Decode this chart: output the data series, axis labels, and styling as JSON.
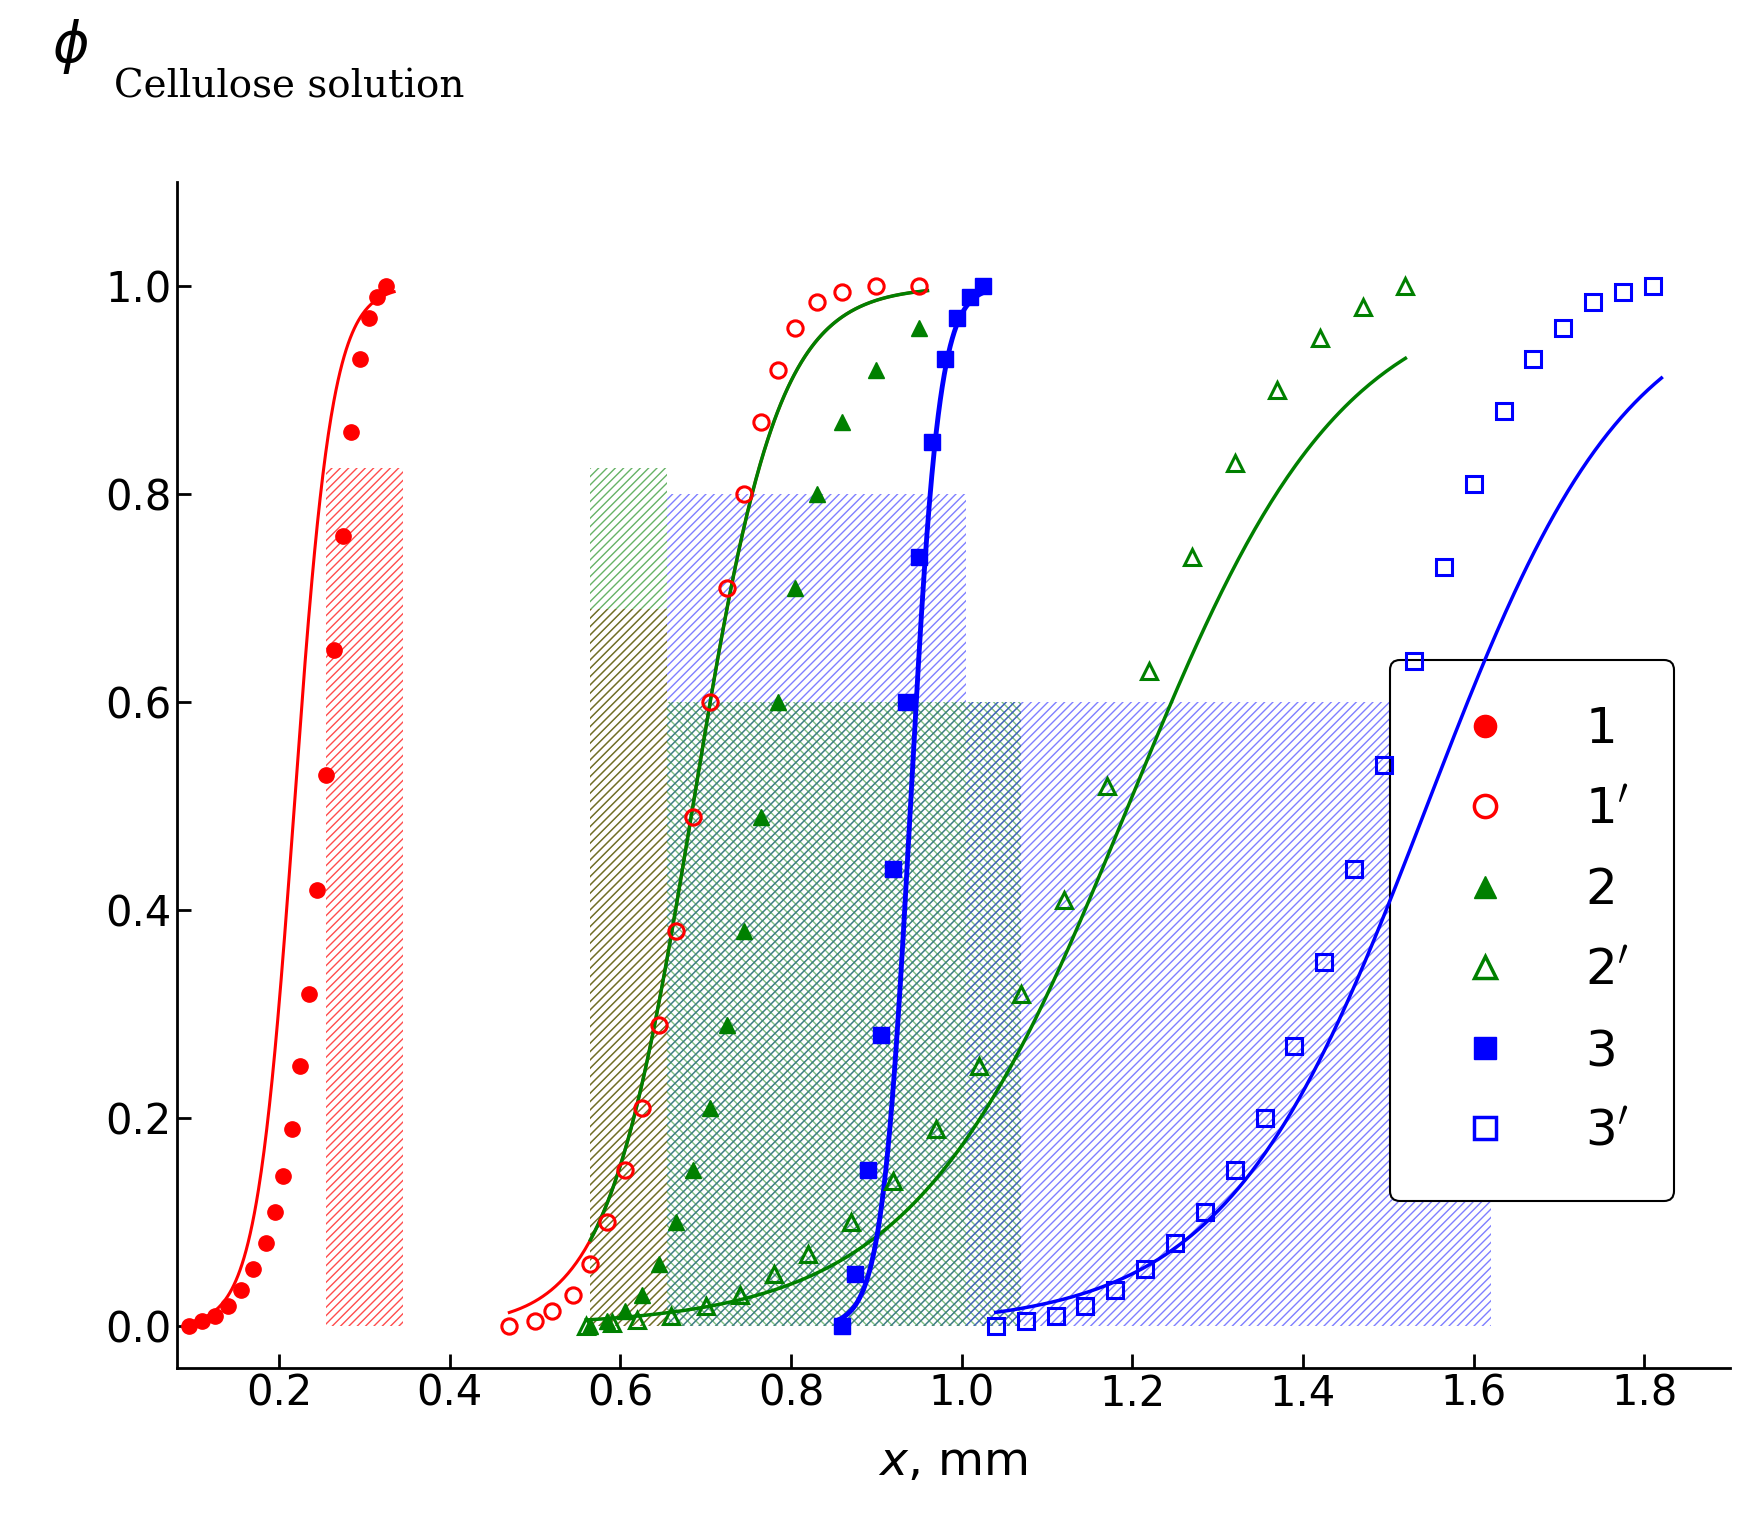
{
  "xlabel": "$x$, mm",
  "xlim": [
    0.08,
    1.9
  ],
  "ylim": [
    -0.04,
    1.1
  ],
  "xticks": [
    0.2,
    0.4,
    0.6,
    0.8,
    1.0,
    1.2,
    1.4,
    1.6,
    1.8
  ],
  "yticks": [
    0.0,
    0.2,
    0.4,
    0.6,
    0.8,
    1.0
  ],
  "series": {
    "s1_solid": {
      "x": [
        0.095,
        0.11,
        0.125,
        0.14,
        0.155,
        0.17,
        0.185,
        0.195,
        0.205,
        0.215,
        0.225,
        0.235,
        0.245,
        0.255,
        0.265,
        0.275,
        0.285,
        0.295,
        0.305,
        0.315,
        0.325
      ],
      "y": [
        0.0,
        0.005,
        0.01,
        0.02,
        0.035,
        0.055,
        0.08,
        0.11,
        0.145,
        0.19,
        0.25,
        0.32,
        0.42,
        0.53,
        0.65,
        0.76,
        0.86,
        0.93,
        0.97,
        0.99,
        1.0
      ],
      "color": "#ff0000",
      "marker": "o",
      "filled": true,
      "label": "1",
      "markersize": 11
    },
    "s1_open": {
      "x": [
        0.47,
        0.5,
        0.52,
        0.545,
        0.565,
        0.585,
        0.605,
        0.625,
        0.645,
        0.665,
        0.685,
        0.705,
        0.725,
        0.745,
        0.765,
        0.785,
        0.805,
        0.83,
        0.86,
        0.9,
        0.95
      ],
      "y": [
        0.0,
        0.005,
        0.015,
        0.03,
        0.06,
        0.1,
        0.15,
        0.21,
        0.29,
        0.38,
        0.49,
        0.6,
        0.71,
        0.8,
        0.87,
        0.92,
        0.96,
        0.985,
        0.995,
        1.0,
        1.0
      ],
      "color": "#ff0000",
      "marker": "o",
      "filled": false,
      "label": "1'",
      "markersize": 11
    },
    "s2_solid": {
      "x": [
        0.565,
        0.585,
        0.605,
        0.625,
        0.645,
        0.665,
        0.685,
        0.705,
        0.725,
        0.745,
        0.765,
        0.785,
        0.805,
        0.83,
        0.86,
        0.9,
        0.95
      ],
      "y": [
        0.0,
        0.005,
        0.015,
        0.03,
        0.06,
        0.1,
        0.15,
        0.21,
        0.29,
        0.38,
        0.49,
        0.6,
        0.71,
        0.8,
        0.87,
        0.92,
        0.96
      ],
      "color": "#008000",
      "marker": "^",
      "filled": true,
      "label": "2",
      "markersize": 11
    },
    "s2_open": {
      "x": [
        0.56,
        0.59,
        0.62,
        0.66,
        0.7,
        0.74,
        0.78,
        0.82,
        0.87,
        0.92,
        0.97,
        1.02,
        1.07,
        1.12,
        1.17,
        1.22,
        1.27,
        1.32,
        1.37,
        1.42,
        1.47,
        1.52
      ],
      "y": [
        0.0,
        0.003,
        0.006,
        0.01,
        0.02,
        0.03,
        0.05,
        0.07,
        0.1,
        0.14,
        0.19,
        0.25,
        0.32,
        0.41,
        0.52,
        0.63,
        0.74,
        0.83,
        0.9,
        0.95,
        0.98,
        1.0
      ],
      "color": "#008000",
      "marker": "^",
      "filled": false,
      "label": "2'",
      "markersize": 11
    },
    "s3_solid": {
      "x": [
        0.86,
        0.875,
        0.89,
        0.905,
        0.92,
        0.935,
        0.95,
        0.965,
        0.98,
        0.995,
        1.01,
        1.025
      ],
      "y": [
        0.0,
        0.05,
        0.15,
        0.28,
        0.44,
        0.6,
        0.74,
        0.85,
        0.93,
        0.97,
        0.99,
        1.0
      ],
      "color": "#0000ff",
      "marker": "s",
      "filled": true,
      "label": "3",
      "markersize": 11
    },
    "s3_open": {
      "x": [
        1.04,
        1.075,
        1.11,
        1.145,
        1.18,
        1.215,
        1.25,
        1.285,
        1.32,
        1.355,
        1.39,
        1.425,
        1.46,
        1.495,
        1.53,
        1.565,
        1.6,
        1.635,
        1.67,
        1.705,
        1.74,
        1.775,
        1.81
      ],
      "y": [
        0.0,
        0.005,
        0.01,
        0.02,
        0.035,
        0.055,
        0.08,
        0.11,
        0.15,
        0.2,
        0.27,
        0.35,
        0.44,
        0.54,
        0.64,
        0.73,
        0.81,
        0.88,
        0.93,
        0.96,
        0.985,
        0.995,
        1.0
      ],
      "color": "#0000ff",
      "marker": "s",
      "filled": false,
      "label": "3'",
      "markersize": 11
    }
  },
  "background_color": "#ffffff",
  "figsize": [
    17.65,
    15.2
  ],
  "dpi": 100
}
